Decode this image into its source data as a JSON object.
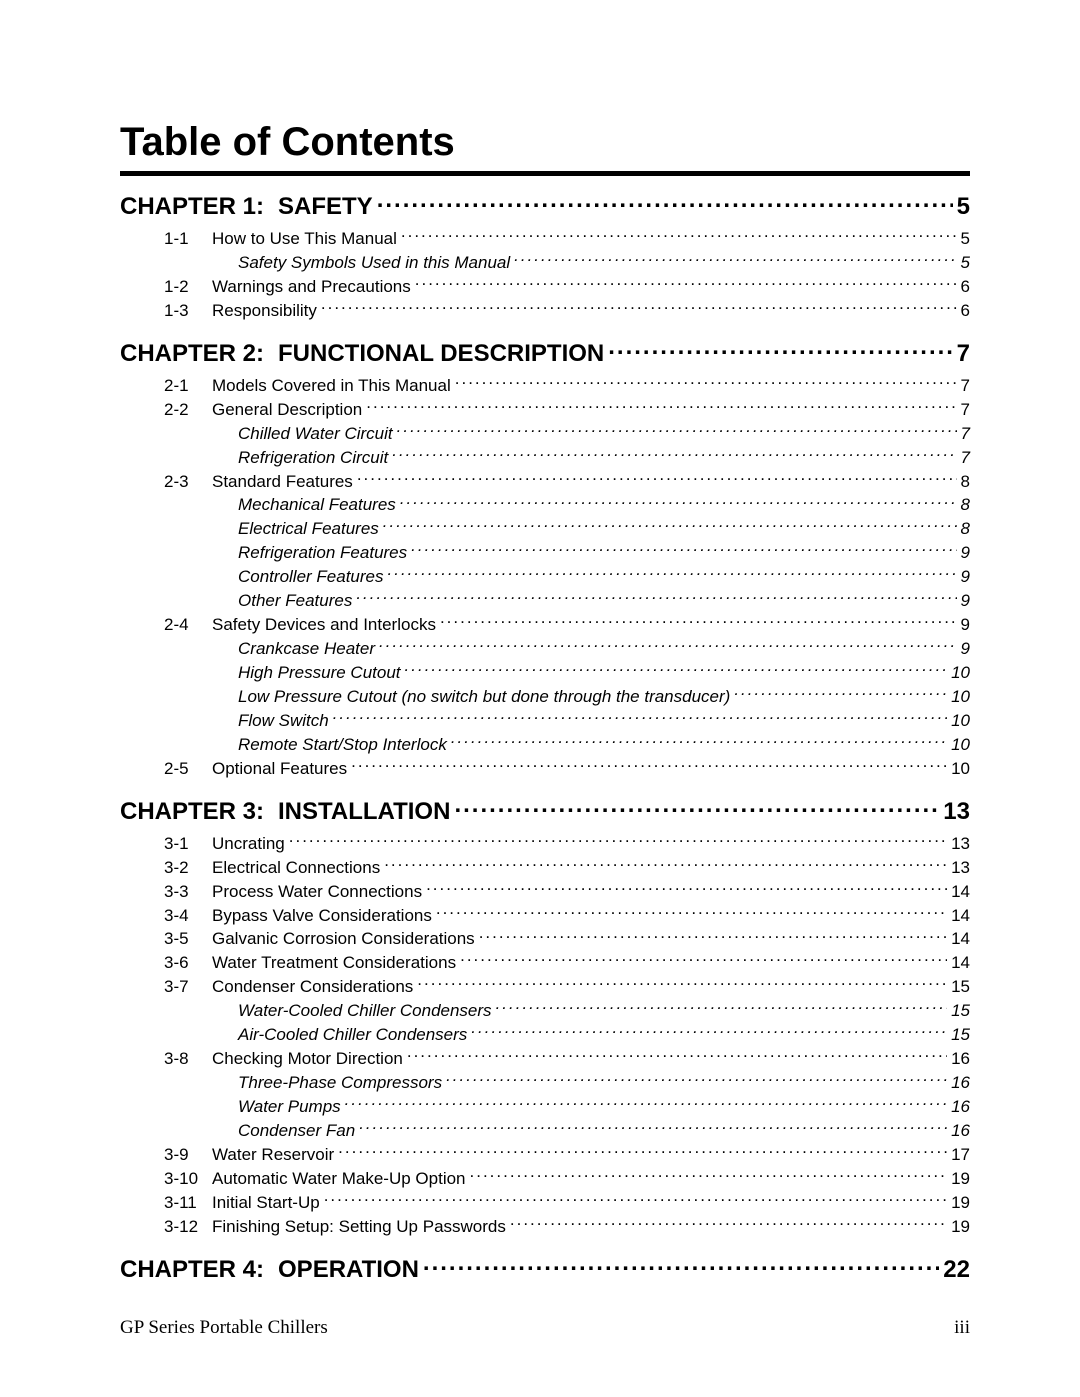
{
  "title": "Table of Contents",
  "footer": {
    "left": "GP Series Portable Chillers",
    "right": "iii"
  },
  "chapters": [
    {
      "prefix": "CHAPTER 1:",
      "title": "Safety",
      "page": "5",
      "entries": [
        {
          "num": "1-1",
          "title": "How to Use This Manual",
          "page": "5",
          "subs": [
            {
              "title": "Safety Symbols Used in this Manual",
              "page": "5"
            }
          ]
        },
        {
          "num": "1-2",
          "title": "Warnings and Precautions",
          "page": "6"
        },
        {
          "num": "1-3",
          "title": "Responsibility",
          "page": "6"
        }
      ]
    },
    {
      "prefix": "CHAPTER 2:",
      "title": "Functional Description",
      "page": "7",
      "entries": [
        {
          "num": "2-1",
          "title": "Models Covered in This Manual",
          "page": "7"
        },
        {
          "num": "2-2",
          "title": "General Description",
          "page": "7",
          "subs": [
            {
              "title": "Chilled Water Circuit",
              "page": "7"
            },
            {
              "title": "Refrigeration Circuit",
              "page": "7"
            }
          ]
        },
        {
          "num": "2-3",
          "title": "Standard Features",
          "page": "8",
          "subs": [
            {
              "title": "Mechanical Features",
              "page": "8"
            },
            {
              "title": "Electrical Features",
              "page": "8"
            },
            {
              "title": "Refrigeration Features",
              "page": "9"
            },
            {
              "title": "Controller Features",
              "page": "9"
            },
            {
              "title": "Other Features",
              "page": "9"
            }
          ]
        },
        {
          "num": "2-4",
          "title": "Safety Devices and Interlocks",
          "page": "9",
          "subs": [
            {
              "title": "Crankcase Heater",
              "page": "9"
            },
            {
              "title": "High Pressure Cutout",
              "page": "10"
            },
            {
              "title": "Low Pressure Cutout (no switch but done through the transducer)",
              "page": "10"
            },
            {
              "title": "Flow Switch",
              "page": "10"
            },
            {
              "title": "Remote Start/Stop Interlock",
              "page": "10"
            }
          ]
        },
        {
          "num": "2-5",
          "title": "Optional Features",
          "page": "10"
        }
      ]
    },
    {
      "prefix": "CHAPTER 3:",
      "title": "Installation",
      "page": "13",
      "entries": [
        {
          "num": "3-1",
          "title": "Uncrating",
          "page": "13"
        },
        {
          "num": "3-2",
          "title": "Electrical Connections",
          "page": "13"
        },
        {
          "num": "3-3",
          "title": "Process Water Connections",
          "page": "14"
        },
        {
          "num": "3-4",
          "title": "Bypass Valve Considerations",
          "page": "14"
        },
        {
          "num": "3-5",
          "title": "Galvanic Corrosion Considerations",
          "page": "14"
        },
        {
          "num": "3-6",
          "title": "Water Treatment Considerations",
          "page": "14"
        },
        {
          "num": "3-7",
          "title": "Condenser Considerations",
          "page": "15",
          "subs": [
            {
              "title": "Water-Cooled Chiller Condensers",
              "page": "15"
            },
            {
              "title": "Air-Cooled Chiller Condensers",
              "page": "15"
            }
          ]
        },
        {
          "num": "3-8",
          "title": "Checking Motor Direction",
          "page": "16",
          "subs": [
            {
              "title": "Three-Phase Compressors",
              "page": "16"
            },
            {
              "title": "Water Pumps",
              "page": "16"
            },
            {
              "title": "Condenser Fan",
              "page": "16"
            }
          ]
        },
        {
          "num": "3-9",
          "title": "Water Reservoir",
          "page": "17"
        },
        {
          "num": "3-10",
          "title": "Automatic Water Make-Up Option",
          "page": "19"
        },
        {
          "num": "3-11",
          "title": "Initial Start-Up",
          "page": "19"
        },
        {
          "num": "3-12",
          "title": "Finishing Setup: Setting Up Passwords",
          "page": "19"
        }
      ]
    },
    {
      "prefix": "CHAPTER 4:",
      "title": "Operation",
      "page": "22",
      "entries": []
    }
  ]
}
